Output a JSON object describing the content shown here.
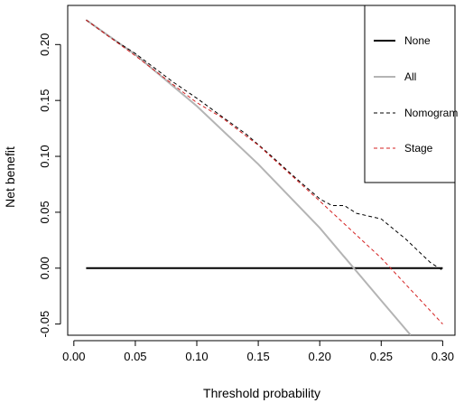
{
  "chart_data": {
    "type": "line",
    "xlabel": "Threshold probability",
    "ylabel": "Net benefit",
    "xlim": [
      -0.005,
      0.31
    ],
    "ylim": [
      -0.06,
      0.235
    ],
    "xticks": [
      "0.00",
      "0.05",
      "0.10",
      "0.15",
      "0.20",
      "0.25",
      "0.30"
    ],
    "yticks": [
      "-0.05",
      "0.00",
      "0.05",
      "0.10",
      "0.15",
      "0.20"
    ],
    "legend_position": "top-right",
    "series": [
      {
        "name": "None",
        "color": "#000000",
        "style": "solid",
        "x": [
          0.01,
          0.3
        ],
        "y": [
          0.0,
          0.0
        ]
      },
      {
        "name": "All",
        "color": "#b4b4b4",
        "style": "solid",
        "x": [
          0.01,
          0.05,
          0.1,
          0.15,
          0.2,
          0.25,
          0.274
        ],
        "y": [
          0.222,
          0.191,
          0.145,
          0.093,
          0.036,
          -0.029,
          -0.06
        ]
      },
      {
        "name": "Nomogram",
        "color": "#000000",
        "style": "dashed",
        "x": [
          0.01,
          0.03,
          0.05,
          0.08,
          0.1,
          0.12,
          0.14,
          0.16,
          0.18,
          0.2,
          0.21,
          0.22,
          0.23,
          0.25,
          0.27,
          0.29,
          0.3
        ],
        "y": [
          0.222,
          0.206,
          0.192,
          0.167,
          0.152,
          0.136,
          0.12,
          0.101,
          0.081,
          0.062,
          0.056,
          0.056,
          0.049,
          0.044,
          0.026,
          0.005,
          -0.002
        ]
      },
      {
        "name": "Stage",
        "color": "#d42020",
        "style": "dashed",
        "x": [
          0.01,
          0.05,
          0.1,
          0.12,
          0.15,
          0.2,
          0.25,
          0.3
        ],
        "y": [
          0.222,
          0.19,
          0.148,
          0.135,
          0.11,
          0.06,
          0.009,
          -0.05
        ]
      }
    ]
  }
}
